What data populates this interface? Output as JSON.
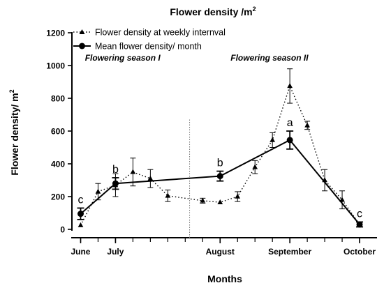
{
  "chart_data": {
    "type": "line",
    "title": "Flower density /m",
    "title_superscript": "2",
    "xlabel": "Months",
    "ylabel": "Flower density/ m",
    "ylabel_superscript": "2",
    "ylim": [
      0,
      1200
    ],
    "yticks": [
      0,
      200,
      400,
      600,
      800,
      1000,
      1200
    ],
    "xticks": [
      {
        "label": "June",
        "x": 1
      },
      {
        "label": "July",
        "x": 5
      },
      {
        "label": "August",
        "x": 17
      },
      {
        "label": "September",
        "x": 25
      },
      {
        "label": "October",
        "x": 33
      }
    ],
    "xlim": [
      0,
      35
    ],
    "season_labels": [
      {
        "text": "Flowering season I",
        "x": 1.5,
        "y": 1030
      },
      {
        "text": "Flowering season II",
        "x": 18.2,
        "y": 1030
      }
    ],
    "divider_x": 13.5,
    "legend": {
      "position": "top-center"
    },
    "series": [
      {
        "name": "Flower density at weekly internval",
        "style": "dotted",
        "marker": "triangle",
        "points": [
          {
            "x": 1,
            "y": 25,
            "err": 0
          },
          {
            "x": 3,
            "y": 230,
            "err": 50
          },
          {
            "x": 5,
            "y": 270,
            "err": 70
          },
          {
            "x": 7,
            "y": 350,
            "err": 85
          },
          {
            "x": 9,
            "y": 310,
            "err": 55
          },
          {
            "x": 11,
            "y": 205,
            "err": 35
          },
          {
            "x": 15,
            "y": 175,
            "err": 15
          },
          {
            "x": 17,
            "y": 165,
            "err": 0
          },
          {
            "x": 19,
            "y": 200,
            "err": 30
          },
          {
            "x": 21,
            "y": 380,
            "err": 40
          },
          {
            "x": 23,
            "y": 545,
            "err": 45
          },
          {
            "x": 25,
            "y": 875,
            "err": 105
          },
          {
            "x": 27,
            "y": 635,
            "err": 25
          },
          {
            "x": 29,
            "y": 300,
            "err": 65
          },
          {
            "x": 31,
            "y": 180,
            "err": 55
          },
          {
            "x": 33,
            "y": 30,
            "err": 15
          }
        ]
      },
      {
        "name": "Mean flower density/ month",
        "style": "solid",
        "marker": "circle",
        "points": [
          {
            "x": 1,
            "y": 95,
            "err": 35,
            "label": "c"
          },
          {
            "x": 5,
            "y": 280,
            "err": 35,
            "label": "b"
          },
          {
            "x": 17,
            "y": 325,
            "err": 30,
            "label": "b"
          },
          {
            "x": 25,
            "y": 545,
            "err": 55,
            "label": "a"
          },
          {
            "x": 33,
            "y": 30,
            "err": 15,
            "label": "c"
          }
        ]
      }
    ]
  }
}
